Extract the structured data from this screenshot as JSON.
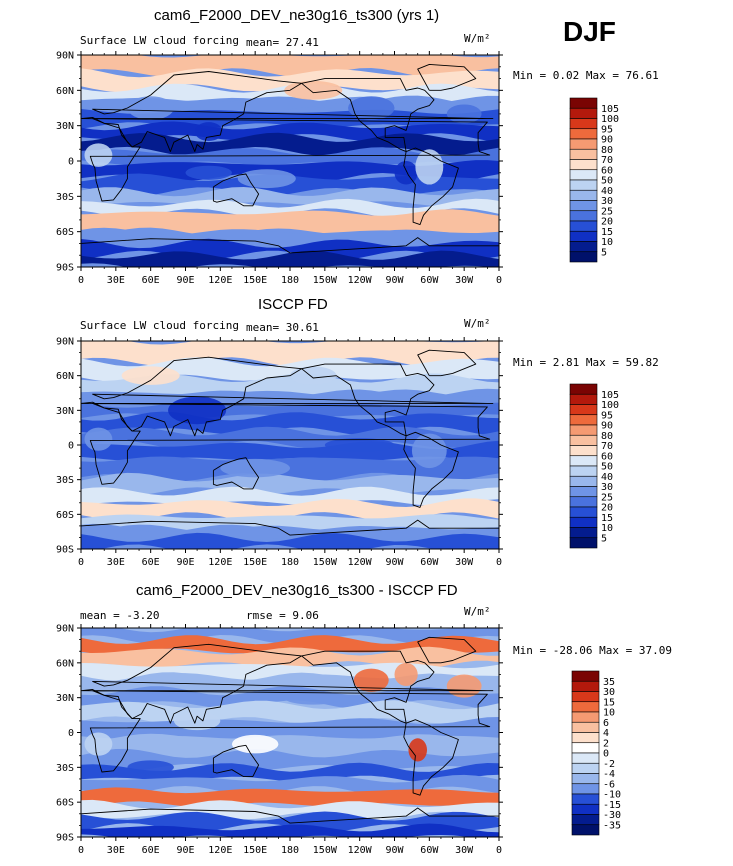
{
  "season": "DJF",
  "panels": [
    {
      "id": "model",
      "title": "cam6_F2000_DEV_ne30g16_ts300 (yrs 1)",
      "left_label": "Surface LW cloud forcing",
      "stat_text": "mean=   27.41",
      "rmse_text": "",
      "units": "W/m²",
      "minmax": "Min =   0.02 Max =  76.61",
      "colorbar_labels": [
        "105",
        "100",
        "95",
        "90",
        "80",
        "70",
        "60",
        "50",
        "40",
        "30",
        "25",
        "20",
        "15",
        "10",
        "5"
      ],
      "colors": [
        "#7a0403",
        "#b3190c",
        "#d8381a",
        "#ee6a3c",
        "#f59a72",
        "#f9c0a0",
        "#fde0cc",
        "#dbe8f7",
        "#bcd3f2",
        "#99b7ec",
        "#6f94e6",
        "#4a72de",
        "#2750d6",
        "#1030c4",
        "#041c8e",
        "#00116a"
      ]
    },
    {
      "id": "obs",
      "title": "ISCCP FD",
      "left_label": "Surface LW cloud forcing",
      "stat_text": "mean=   30.61",
      "rmse_text": "",
      "units": "W/m²",
      "minmax": "Min =   2.81 Max =  59.82",
      "colorbar_labels": [
        "105",
        "100",
        "95",
        "90",
        "80",
        "70",
        "60",
        "50",
        "40",
        "30",
        "25",
        "20",
        "15",
        "10",
        "5"
      ],
      "colors": [
        "#7a0403",
        "#b3190c",
        "#d8381a",
        "#ee6a3c",
        "#f59a72",
        "#f9c0a0",
        "#fde0cc",
        "#dbe8f7",
        "#bcd3f2",
        "#99b7ec",
        "#6f94e6",
        "#4a72de",
        "#2750d6",
        "#1030c4",
        "#041c8e",
        "#00116a"
      ]
    },
    {
      "id": "diff",
      "title": "cam6_F2000_DEV_ne30g16_ts300 - ISCCP FD",
      "left_label": "mean =  -3.20",
      "stat_text": "rmse =    9.06",
      "rmse_text": "",
      "units": "W/m²",
      "minmax": "Min = -28.06 Max =  37.09",
      "colorbar_labels": [
        "35",
        "30",
        "15",
        "10",
        "6",
        "4",
        "2",
        "0",
        "-2",
        "-4",
        "-6",
        "-10",
        "-15",
        "-30",
        "-35"
      ],
      "colors": [
        "#7a0403",
        "#b3190c",
        "#d8381a",
        "#ee6a3c",
        "#f59a72",
        "#f9c0a0",
        "#fde0cc",
        "#ffffff",
        "#dbe8f7",
        "#bcd3f2",
        "#99b7ec",
        "#6f94e6",
        "#2750d6",
        "#1030c4",
        "#041c8e",
        "#00116a"
      ]
    }
  ],
  "lat_labels": [
    "90N",
    "60N",
    "30N",
    "0",
    "30S",
    "60S",
    "90S"
  ],
  "lon_labels": [
    "0",
    "30E",
    "60E",
    "90E",
    "120E",
    "150E",
    "180",
    "150W",
    "120W",
    "90W",
    "60W",
    "30W",
    "0"
  ]
}
